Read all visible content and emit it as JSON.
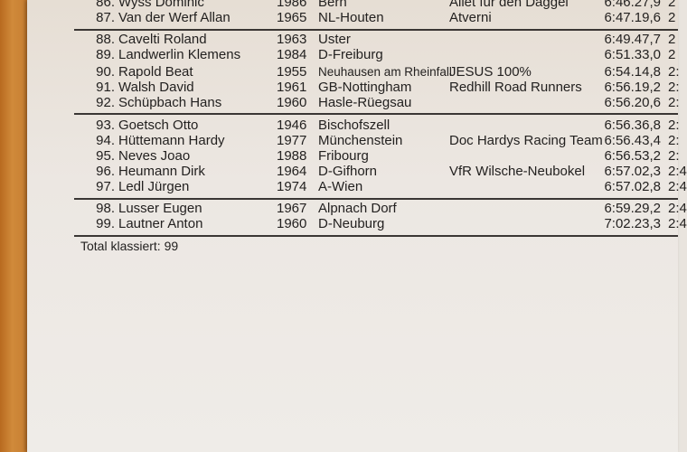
{
  "results": [
    {
      "rank": "86.",
      "name": "Wyss Dominic",
      "year": "1986",
      "city": "Bern",
      "club": "Allet für den Daggel",
      "time": "6:46.27,9",
      "extra": "2"
    },
    {
      "rank": "87.",
      "name": "Van der Werf Allan",
      "year": "1965",
      "city": "NL-Houten",
      "club": "Atverni",
      "time": "6:47.19,6",
      "extra": "2"
    },
    {
      "rank": "88.",
      "name": "Cavelti Roland",
      "year": "1963",
      "city": "Uster",
      "club": "",
      "time": "6:49.47,7",
      "extra": "2"
    },
    {
      "rank": "89.",
      "name": "Landwerlin Klemens",
      "year": "1984",
      "city": "D-Freiburg",
      "club": "",
      "time": "6:51.33,0",
      "extra": "2"
    },
    {
      "rank": "90.",
      "name": "Rapold Beat",
      "year": "1955",
      "city": "Neuhausen am Rheinfall",
      "club": "JESUS 100%",
      "time": "6:54.14,8",
      "extra": "2:"
    },
    {
      "rank": "91.",
      "name": "Walsh David",
      "year": "1961",
      "city": "GB-Nottingham",
      "club": "Redhill Road Runners",
      "time": "6:56.19,2",
      "extra": "2:"
    },
    {
      "rank": "92.",
      "name": "Schüpbach Hans",
      "year": "1960",
      "city": "Hasle-Rüegsau",
      "club": "",
      "time": "6:56.20,6",
      "extra": "2:"
    },
    {
      "rank": "93.",
      "name": "Goetsch Otto",
      "year": "1946",
      "city": "Bischofszell",
      "club": "",
      "time": "6:56.36,8",
      "extra": "2:"
    },
    {
      "rank": "94.",
      "name": "Hüttemann Hardy",
      "year": "1977",
      "city": "Münchenstein",
      "club": "Doc Hardys Racing Team",
      "time": "6:56.43,4",
      "extra": "2:"
    },
    {
      "rank": "95.",
      "name": "Neves Joao",
      "year": "1988",
      "city": "Fribourg",
      "club": "",
      "time": "6:56.53,2",
      "extra": "2:"
    },
    {
      "rank": "96.",
      "name": "Heumann Dirk",
      "year": "1964",
      "city": "D-Gifhorn",
      "club": "VfR Wilsche-Neubokel",
      "time": "6:57.02,3",
      "extra": "2:4"
    },
    {
      "rank": "97.",
      "name": "Ledl Jürgen",
      "year": "1974",
      "city": "A-Wien",
      "club": "",
      "time": "6:57.02,8",
      "extra": "2:4"
    },
    {
      "rank": "98.",
      "name": "Lusser Eugen",
      "year": "1967",
      "city": "Alpnach Dorf",
      "club": "",
      "time": "6:59.29,2",
      "extra": "2:4"
    },
    {
      "rank": "99.",
      "name": "Lautner Anton",
      "year": "1960",
      "city": "D-Neuburg",
      "club": "",
      "time": "7:02.23,3",
      "extra": "2:4"
    }
  ],
  "footer": {
    "total": "Total klassiert: 99"
  }
}
